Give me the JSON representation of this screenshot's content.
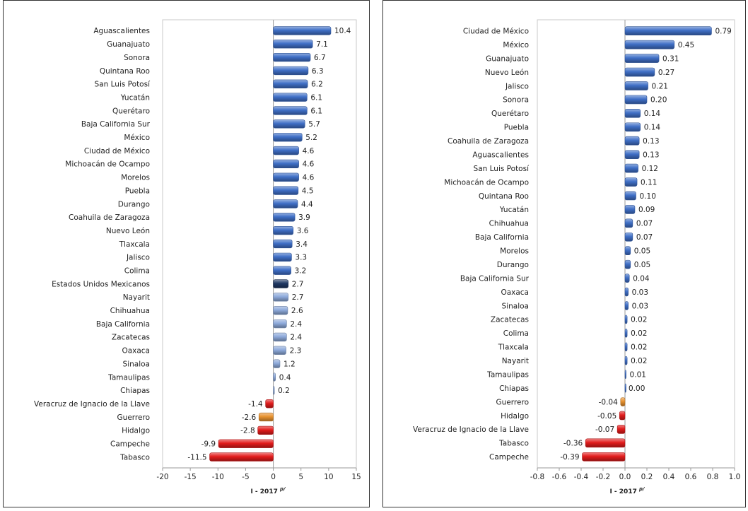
{
  "chart_data": [
    {
      "type": "bar",
      "orientation": "horizontal",
      "xlabel": "I - 2017",
      "xlabel_sup": "p/",
      "xlim": [
        -20,
        15
      ],
      "xticks": [
        "-20",
        "-15",
        "-10",
        "-5",
        "0",
        "5",
        "10",
        "15"
      ],
      "grid": false,
      "categories": [
        "Aguascalientes",
        "Guanajuato",
        "Sonora",
        "Quintana Roo",
        "San Luis Potosí",
        "Yucatán",
        "Querétaro",
        "Baja California Sur",
        "México",
        "Ciudad de México",
        "Michoacán de Ocampo",
        "Morelos",
        "Puebla",
        "Durango",
        "Coahuila de Zaragoza",
        "Nuevo León",
        "Tlaxcala",
        "Jalisco",
        "Colima",
        "Estados Unidos Mexicanos",
        "Nayarit",
        "Chihuahua",
        "Baja California",
        "Zacatecas",
        "Oaxaca",
        "Sinaloa",
        "Tamaulipas",
        "Chiapas",
        "Veracruz de Ignacio de la Llave",
        "Guerrero",
        "Hidalgo",
        "Campeche",
        "Tabasco"
      ],
      "values": [
        10.4,
        7.1,
        6.7,
        6.3,
        6.2,
        6.1,
        6.1,
        5.7,
        5.2,
        4.6,
        4.6,
        4.6,
        4.5,
        4.4,
        3.9,
        3.6,
        3.4,
        3.3,
        3.2,
        2.7,
        2.7,
        2.6,
        2.4,
        2.4,
        2.3,
        1.2,
        0.4,
        0.2,
        -1.4,
        -2.6,
        -2.8,
        -9.9,
        -11.5
      ],
      "value_labels": [
        "10.4",
        "7.1",
        "6.7",
        "6.3",
        "6.2",
        "6.1",
        "6.1",
        "5.7",
        "5.2",
        "4.6",
        "4.6",
        "4.6",
        "4.5",
        "4.4",
        "3.9",
        "3.6",
        "3.4",
        "3.3",
        "3.2",
        "2.7",
        "2.7",
        "2.6",
        "2.4",
        "2.4",
        "2.3",
        "1.2",
        "0.4",
        "0.2",
        "-1.4",
        "-2.6",
        "-2.8",
        "-9.9",
        "-11.5"
      ],
      "bar_colors": [
        "#3f6fc6",
        "#3f6fc6",
        "#3f6fc6",
        "#3f6fc6",
        "#3f6fc6",
        "#3f6fc6",
        "#3f6fc6",
        "#3f6fc6",
        "#3f6fc6",
        "#3f6fc6",
        "#3f6fc6",
        "#3f6fc6",
        "#3f6fc6",
        "#3f6fc6",
        "#3f6fc6",
        "#3f6fc6",
        "#3f6fc6",
        "#3f6fc6",
        "#3f6fc6",
        "#1f3864",
        "#8eaadb",
        "#8eaadb",
        "#8eaadb",
        "#8eaadb",
        "#8eaadb",
        "#8eaadb",
        "#8eaadb",
        "#8eaadb",
        "#e21c1c",
        "#e8922f",
        "#e21c1c",
        "#e21c1c",
        "#e21c1c"
      ]
    },
    {
      "type": "bar",
      "orientation": "horizontal",
      "xlabel": "I - 2017",
      "xlabel_sup": "p/",
      "xlim": [
        -0.8,
        1.0
      ],
      "xticks": [
        "-0.8",
        "-0.6",
        "-0.4",
        "-0.2",
        "0.0",
        "0.2",
        "0.4",
        "0.6",
        "0.8",
        "1.0"
      ],
      "grid": false,
      "categories": [
        "Ciudad de México",
        "México",
        "Guanajuato",
        "Nuevo León",
        "Jalisco",
        "Sonora",
        "Querétaro",
        "Puebla",
        "Coahuila de Zaragoza",
        "Aguascalientes",
        "San Luis Potosí",
        "Michoacán de Ocampo",
        "Quintana Roo",
        "Yucatán",
        "Chihuahua",
        "Baja California",
        "Morelos",
        "Durango",
        "Baja California Sur",
        "Oaxaca",
        "Sinaloa",
        "Zacatecas",
        "Colima",
        "Tlaxcala",
        "Nayarit",
        "Tamaulipas",
        "Chiapas",
        "Guerrero",
        "Hidalgo",
        "Veracruz de Ignacio de la Llave",
        "Tabasco",
        "Campeche"
      ],
      "values": [
        0.79,
        0.45,
        0.31,
        0.27,
        0.21,
        0.2,
        0.14,
        0.14,
        0.13,
        0.13,
        0.12,
        0.11,
        0.1,
        0.09,
        0.07,
        0.07,
        0.05,
        0.05,
        0.04,
        0.03,
        0.03,
        0.02,
        0.02,
        0.02,
        0.02,
        0.01,
        0.0,
        -0.04,
        -0.05,
        -0.07,
        -0.36,
        -0.39
      ],
      "value_labels": [
        "0.79",
        "0.45",
        "0.31",
        "0.27",
        "0.21",
        "0.20",
        "0.14",
        "0.14",
        "0.13",
        "0.13",
        "0.12",
        "0.11",
        "0.10",
        "0.09",
        "0.07",
        "0.07",
        "0.05",
        "0.05",
        "0.04",
        "0.03",
        "0.03",
        "0.02",
        "0.02",
        "0.02",
        "0.02",
        "0.01",
        "0.00",
        "-0.04",
        "-0.05",
        "-0.07",
        "-0.36",
        "-0.39"
      ],
      "bar_colors": [
        "#3f6fc6",
        "#3f6fc6",
        "#3f6fc6",
        "#3f6fc6",
        "#3f6fc6",
        "#3f6fc6",
        "#3f6fc6",
        "#3f6fc6",
        "#3f6fc6",
        "#3f6fc6",
        "#3f6fc6",
        "#3f6fc6",
        "#3f6fc6",
        "#3f6fc6",
        "#3f6fc6",
        "#3f6fc6",
        "#3f6fc6",
        "#3f6fc6",
        "#3f6fc6",
        "#3f6fc6",
        "#3f6fc6",
        "#3f6fc6",
        "#3f6fc6",
        "#3f6fc6",
        "#3f6fc6",
        "#3f6fc6",
        "#3f6fc6",
        "#e8922f",
        "#e21c1c",
        "#e21c1c",
        "#e21c1c",
        "#e21c1c"
      ]
    }
  ]
}
